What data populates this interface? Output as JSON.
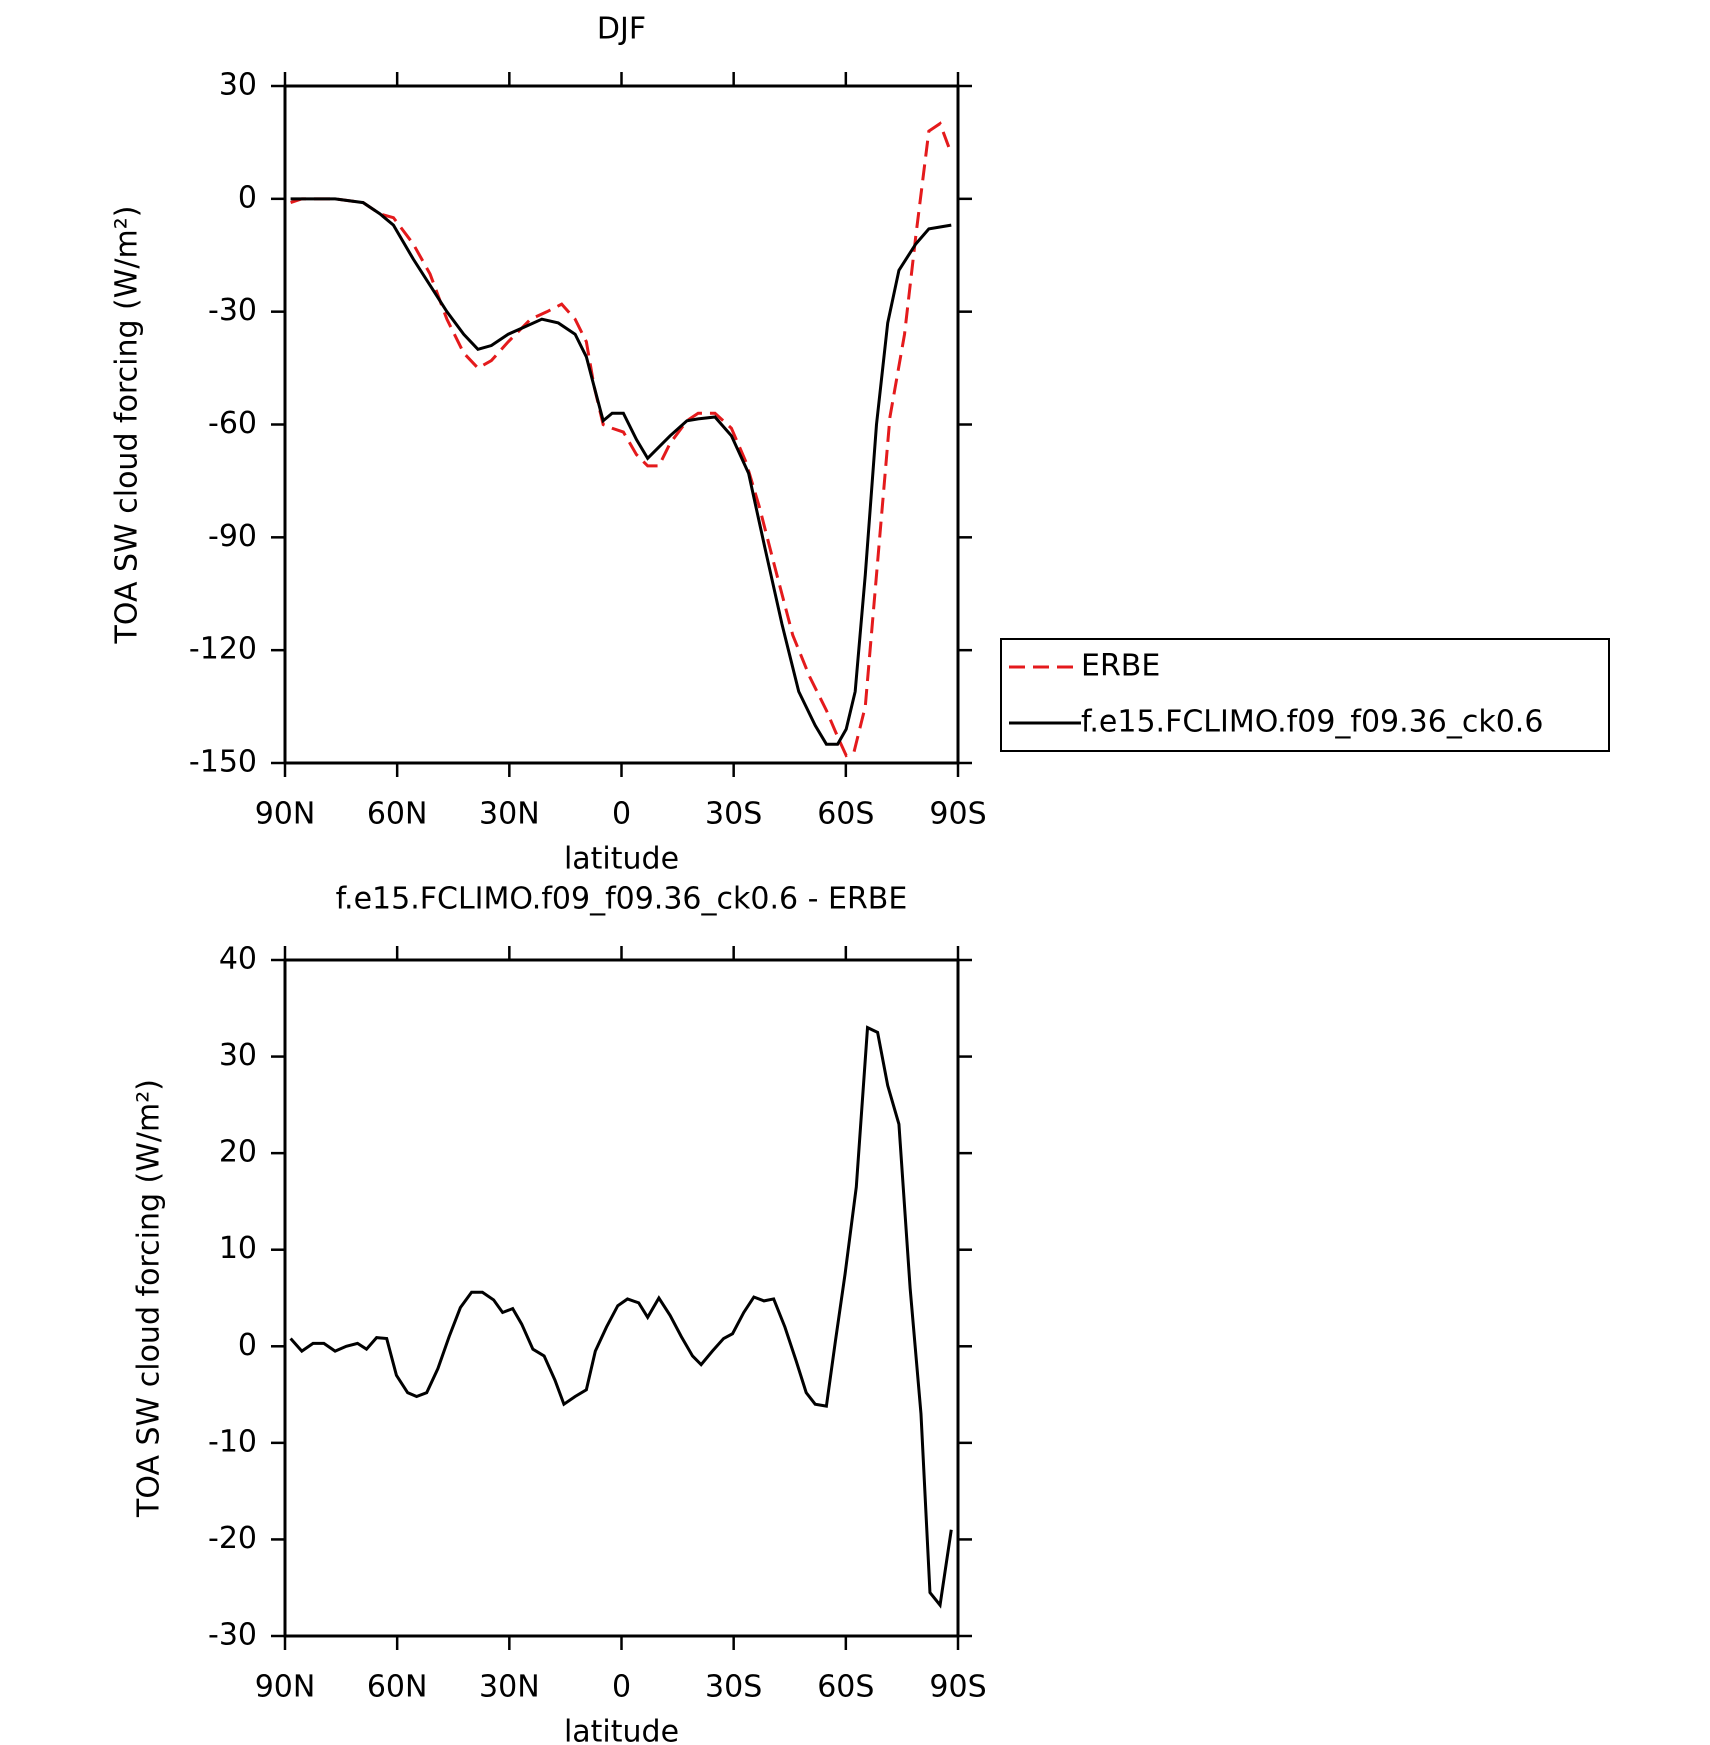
{
  "chart_data": [
    {
      "type": "line",
      "title": "DJF",
      "xlabel": "latitude",
      "ylabel": "TOA SW cloud forcing (W/m²)",
      "xlim": [
        90,
        -90
      ],
      "xticks": [
        {
          "value": 90,
          "label": "90N"
        },
        {
          "value": 60,
          "label": "60N"
        },
        {
          "value": 30,
          "label": "30N"
        },
        0,
        {
          "value": -30,
          "label": "30S"
        },
        {
          "value": -60,
          "label": "60S"
        },
        {
          "value": -90,
          "label": "90S"
        }
      ],
      "ylim": [
        -150,
        30
      ],
      "yticks": [
        -150,
        -120,
        -90,
        -60,
        -30,
        0,
        30
      ],
      "legend": "right",
      "series": [
        {
          "name": "ERBE",
          "color": "#e41a1c",
          "dash": true,
          "x": [
            88.5,
            85.5,
            76.6,
            69.1,
            64.6,
            61,
            55.7,
            51.2,
            46.7,
            42.2,
            38.4,
            34.8,
            30.3,
            24.3,
            19.9,
            16,
            12.4,
            9.4,
            7.3,
            4.9,
            2.5,
            -0.5,
            -4,
            -7,
            -10,
            -13,
            -17.5,
            -20.5,
            -25,
            -29.4,
            -33.3,
            -36.9,
            -41.3,
            -45.8,
            -50.3,
            -54.8,
            -57.8,
            -60.1,
            -62.2,
            -65.2,
            -68.2,
            -71.8,
            -75.7,
            -78.7,
            -82.2,
            -85.2,
            -88.2
          ],
          "values": [
            -1,
            0,
            0,
            -1,
            -4,
            -5,
            -12,
            -20,
            -32,
            -41,
            -45,
            -43,
            -38,
            -32,
            -30,
            -28,
            -32,
            -38,
            -50,
            -60,
            -61,
            -62,
            -68,
            -71,
            -71,
            -65,
            -59,
            -57,
            -57,
            -61,
            -70,
            -82,
            -99,
            -116,
            -127,
            -136,
            -143,
            -148,
            -147,
            -135,
            -100,
            -58,
            -36,
            -10,
            18,
            20,
            12
          ]
        },
        {
          "name": "f.e15.FCLIMO.f09_f09.36_ck0.6",
          "color": "#000000",
          "dash": false,
          "x": [
            88.5,
            76.6,
            69.1,
            64.6,
            61,
            55.7,
            51.2,
            46.7,
            42.2,
            38.4,
            34.8,
            30.3,
            25.8,
            21.3,
            16.9,
            12.4,
            9.4,
            7.3,
            4.9,
            2.5,
            -0.5,
            -4,
            -7,
            -10,
            -13,
            -17.5,
            -20.5,
            -25,
            -29.4,
            -34,
            -38.4,
            -42.9,
            -47.4,
            -51.8,
            -54.8,
            -57.8,
            -60.1,
            -62.5,
            -65.2,
            -68.2,
            -71.2,
            -74.2,
            -78.7,
            -82.2,
            -85.2,
            -88.2
          ],
          "values": [
            0,
            0,
            -1,
            -4,
            -7,
            -16,
            -23,
            -30,
            -36,
            -40,
            -39,
            -36,
            -34,
            -32,
            -33,
            -36,
            -42,
            -50,
            -59,
            -57,
            -57,
            -64,
            -69,
            -66,
            -63,
            -59,
            -58.5,
            -58,
            -63,
            -73,
            -93,
            -113,
            -131,
            -140,
            -145,
            -145,
            -141,
            -131,
            -100,
            -60,
            -33,
            -19,
            -12,
            -8,
            -7.5,
            -7
          ]
        }
      ]
    },
    {
      "type": "line",
      "title": "f.e15.FCLIMO.f09_f09.36_ck0.6 - ERBE",
      "xlabel": "latitude",
      "ylabel": "TOA SW cloud forcing (W/m²)",
      "xlim": [
        90,
        -90
      ],
      "xticks": [
        {
          "value": 90,
          "label": "90N"
        },
        {
          "value": 60,
          "label": "60N"
        },
        {
          "value": 30,
          "label": "30N"
        },
        0,
        {
          "value": -30,
          "label": "30S"
        },
        {
          "value": -60,
          "label": "60S"
        },
        {
          "value": -90,
          "label": "90S"
        }
      ],
      "ylim": [
        -30,
        40
      ],
      "yticks": [
        -30,
        -20,
        -10,
        0,
        10,
        20,
        30,
        40
      ],
      "series": [
        {
          "color": "#000000",
          "dash": false,
          "x": [
            88.5,
            85.5,
            82.5,
            79.6,
            76.6,
            73.6,
            70.6,
            68.2,
            65.5,
            62.8,
            60.2,
            57.2,
            54.8,
            52.1,
            49.1,
            46.1,
            43.1,
            40.1,
            37.2,
            34.2,
            31.8,
            29.1,
            26.7,
            23.7,
            20.7,
            17.8,
            15.4,
            12.4,
            9.4,
            7,
            4,
            1,
            -1.6,
            -4.6,
            -7,
            -10,
            -13,
            -16,
            -19,
            -21.3,
            -24.3,
            -27.3,
            -29.7,
            -32.7,
            -35.4,
            -38.1,
            -40.7,
            -43.7,
            -46.7,
            -49.4,
            -51.8,
            -54.8,
            -57.2,
            -59.8,
            -62.8,
            -65.8,
            -68.5,
            -71.2,
            -74.2,
            -77.2,
            -80.1,
            -82.5,
            -85.2,
            -88.2
          ],
          "values": [
            0.8,
            -0.5,
            0.3,
            0.3,
            -0.5,
            0,
            0.3,
            -0.3,
            0.9,
            0.8,
            -3,
            -4.8,
            -5.2,
            -4.8,
            -2.3,
            1,
            4,
            5.6,
            5.6,
            4.8,
            3.5,
            3.9,
            2.3,
            -0.3,
            -1,
            -3.5,
            -6,
            -5.2,
            -4.5,
            -0.5,
            2,
            4.2,
            4.9,
            4.5,
            3,
            5,
            3.2,
            1,
            -1,
            -1.9,
            -0.5,
            0.8,
            1.3,
            3.5,
            5.1,
            4.7,
            4.9,
            2,
            -1.5,
            -4.8,
            -6,
            -6.2,
            0.5,
            7.5,
            16.5,
            33,
            32.5,
            27,
            23,
            6,
            -7,
            -25.5,
            -26.8,
            -19
          ]
        }
      ]
    }
  ]
}
